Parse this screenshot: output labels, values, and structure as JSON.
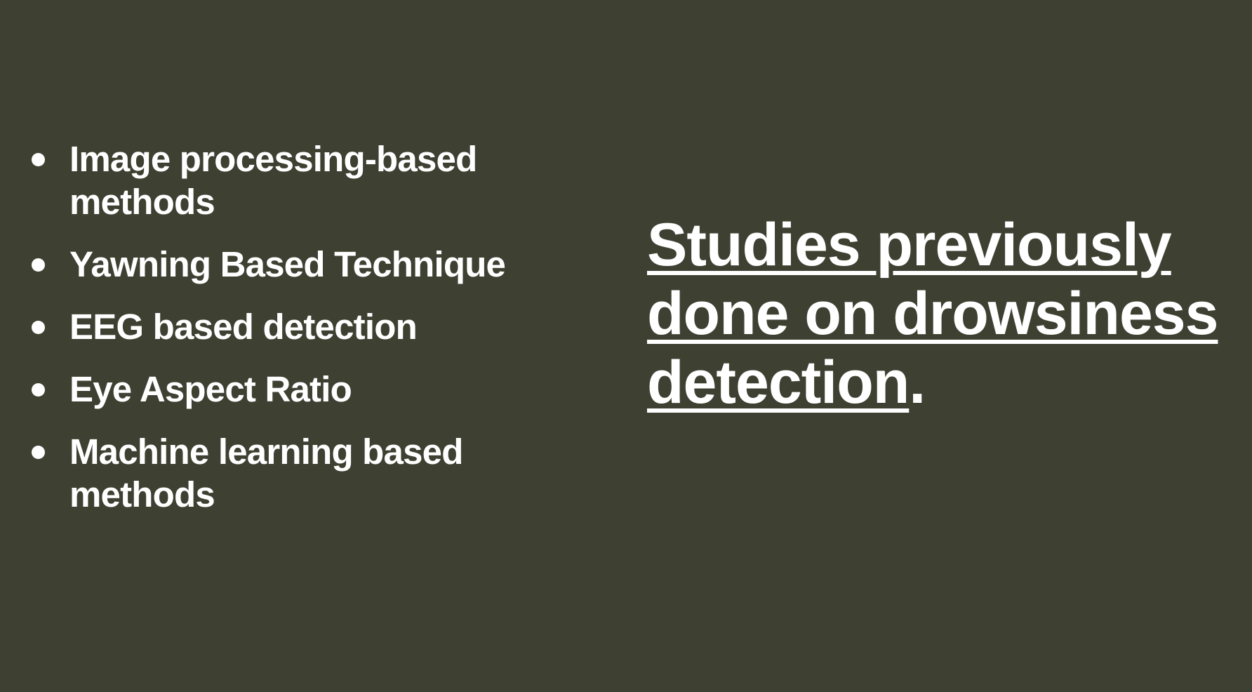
{
  "bullets": [
    "Image processing-based methods",
    "Yawning Based Technique",
    "EEG based detection",
    "Eye Aspect Ratio",
    "Machine learning based methods"
  ],
  "title": {
    "link_text": "Studies previously done on drowsiness detection",
    "suffix": "."
  },
  "colors": {
    "background": "#3e4132",
    "text": "#ffffff"
  }
}
